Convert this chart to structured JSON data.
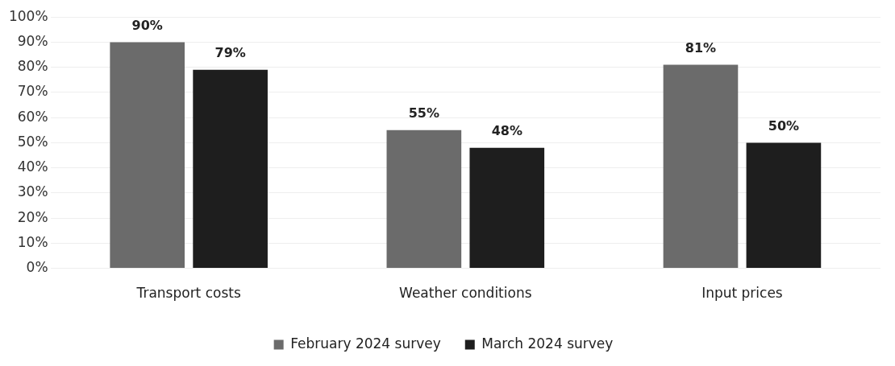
{
  "chart_data": {
    "type": "bar",
    "categories": [
      "Transport costs",
      "Weather conditions",
      "Input prices"
    ],
    "series": [
      {
        "name": "February 2024 survey",
        "color": "#6b6b6b",
        "values": [
          90,
          55,
          81
        ]
      },
      {
        "name": "March 2024 survey",
        "color": "#1e1e1e",
        "values": [
          79,
          48,
          50
        ]
      }
    ],
    "ylim": [
      0,
      100
    ],
    "yticks": [
      {
        "value": 0,
        "label": "0%"
      },
      {
        "value": 10,
        "label": "10%"
      },
      {
        "value": 20,
        "label": "20%"
      },
      {
        "value": 30,
        "label": "30%"
      },
      {
        "value": 40,
        "label": "40%"
      },
      {
        "value": 50,
        "label": "50%"
      },
      {
        "value": 60,
        "label": "60%"
      },
      {
        "value": 70,
        "label": "70%"
      },
      {
        "value": 80,
        "label": "80%"
      },
      {
        "value": 90,
        "label": "90%"
      },
      {
        "value": 100,
        "label": "100%"
      }
    ],
    "grid": "y",
    "legend": "bottom",
    "value_labels": [
      [
        "90%",
        "55%",
        "81%"
      ],
      [
        "79%",
        "48%",
        "50%"
      ]
    ]
  }
}
